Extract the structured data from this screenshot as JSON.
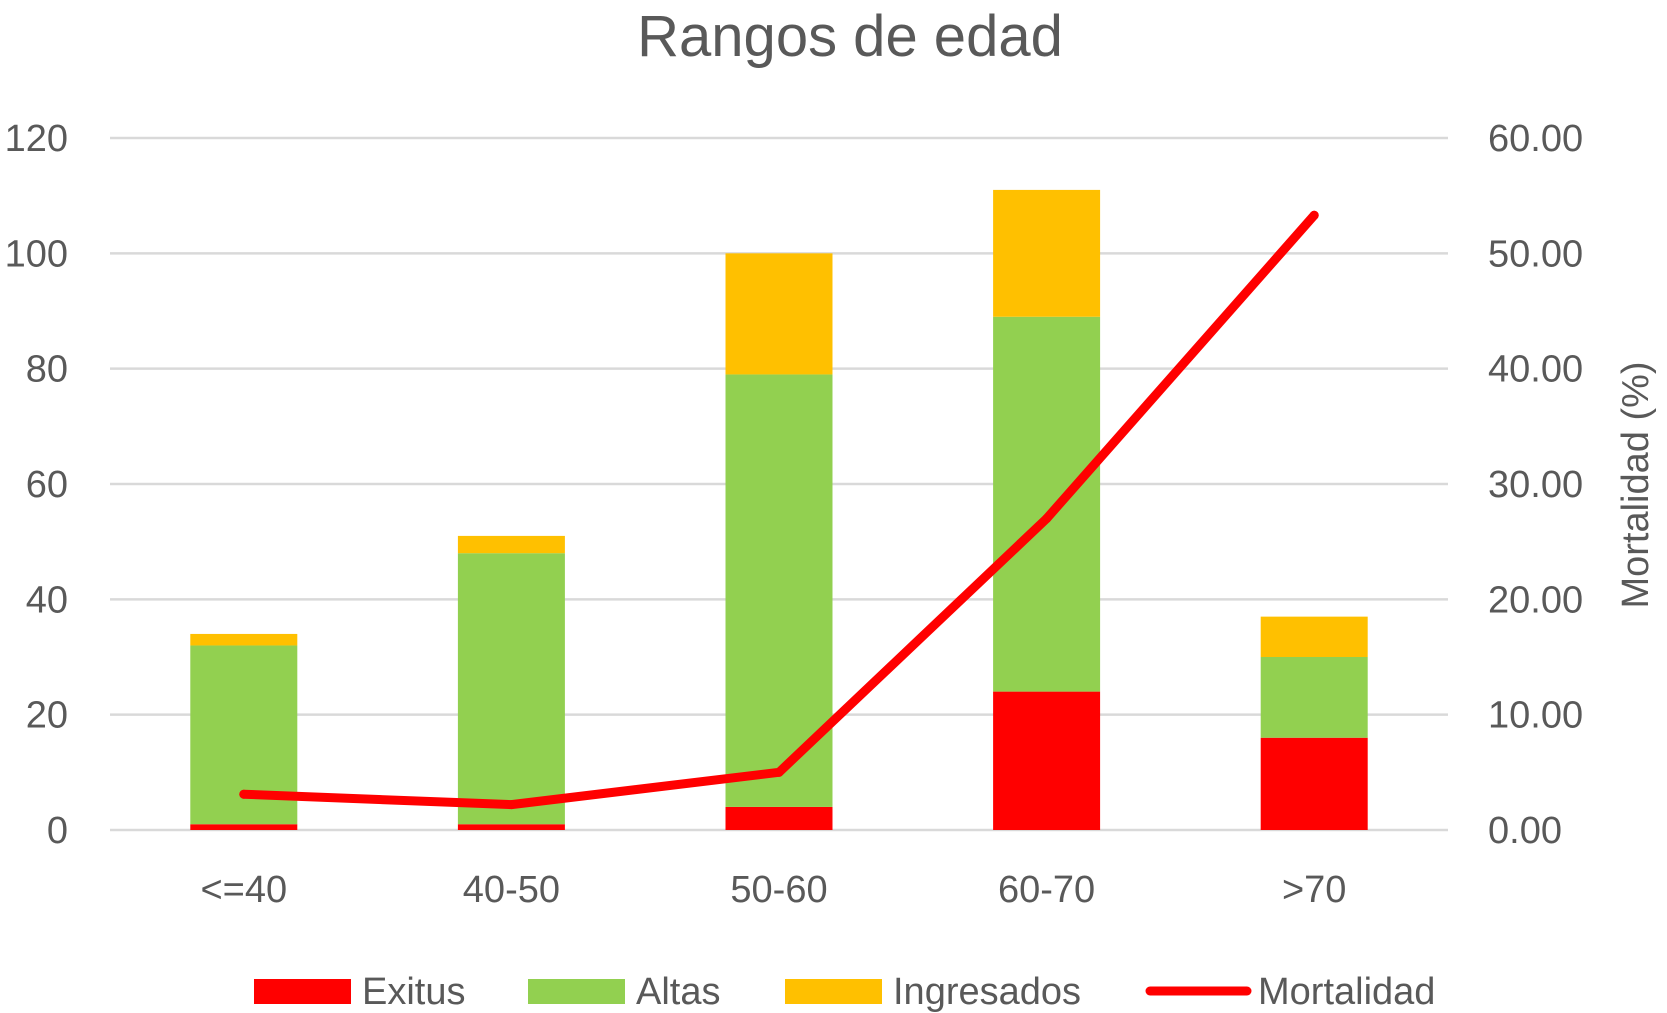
{
  "chart_data": {
    "type": "bar",
    "stacked": true,
    "title": "Rangos de edad",
    "categories": [
      "<=40",
      "40-50",
      "50-60",
      "60-70",
      ">70"
    ],
    "series": [
      {
        "name": "Exitus",
        "type": "bar",
        "axis": "left",
        "color": "#FF0000",
        "values": [
          1,
          1,
          4,
          24,
          16
        ]
      },
      {
        "name": "Altas",
        "type": "bar",
        "axis": "left",
        "color": "#92D050",
        "values": [
          31,
          47,
          75,
          65,
          14
        ]
      },
      {
        "name": "Ingresados",
        "type": "bar",
        "axis": "left",
        "color": "#FFC000",
        "values": [
          2,
          3,
          21,
          22,
          7
        ]
      },
      {
        "name": "Mortalidad",
        "type": "line",
        "axis": "right",
        "color": "#FF0000",
        "values": [
          3.1,
          2.2,
          5.0,
          27.0,
          53.3
        ]
      }
    ],
    "y_left": {
      "label": "",
      "ylim": [
        0,
        120
      ],
      "ticks": [
        "0",
        "20",
        "40",
        "60",
        "80",
        "100",
        "120"
      ]
    },
    "y_right": {
      "label": "Mortalidad (%)",
      "ylim": [
        0,
        60
      ],
      "ticks": [
        "0.00",
        "10.00",
        "20.00",
        "30.00",
        "40.00",
        "50.00",
        "60.00"
      ]
    },
    "grid": true,
    "legend": "bottom"
  }
}
